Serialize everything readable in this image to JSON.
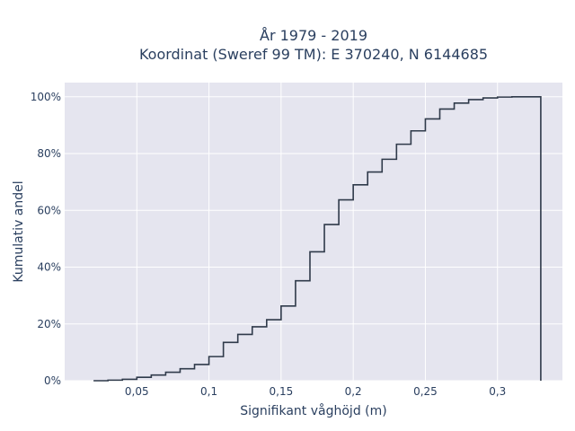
{
  "chart_data": {
    "type": "line",
    "title_line1": "År 1979 - 2019",
    "title_line2": "Koordinat (Sweref 99 TM): E 370240, N 6144685",
    "xlabel": "Signifikant våghöjd (m)",
    "ylabel": "Kumulativ andel",
    "xlim": [
      0.0,
      0.345
    ],
    "ylim": [
      0,
      1.05
    ],
    "x_ticks": [
      0.05,
      0.1,
      0.15,
      0.2,
      0.25,
      0.3
    ],
    "x_tick_labels": [
      "0,05",
      "0,1",
      "0,15",
      "0,2",
      "0,25",
      "0,3"
    ],
    "y_ticks": [
      0,
      0.2,
      0.4,
      0.6,
      0.8,
      1.0
    ],
    "y_tick_labels": [
      "0%",
      "20%",
      "40%",
      "60%",
      "80%",
      "100%"
    ],
    "grid": true,
    "line_color": "#2f3a4a",
    "plot_background": "#e5e5ef",
    "step": true,
    "x": [
      0.02,
      0.03,
      0.04,
      0.05,
      0.06,
      0.07,
      0.08,
      0.09,
      0.1,
      0.11,
      0.12,
      0.13,
      0.14,
      0.15,
      0.16,
      0.17,
      0.18,
      0.19,
      0.2,
      0.21,
      0.22,
      0.23,
      0.24,
      0.25,
      0.26,
      0.27,
      0.28,
      0.29,
      0.3,
      0.31,
      0.32,
      0.33
    ],
    "y": [
      0.0,
      0.002,
      0.005,
      0.012,
      0.02,
      0.03,
      0.042,
      0.057,
      0.085,
      0.135,
      0.163,
      0.19,
      0.215,
      0.263,
      0.352,
      0.454,
      0.55,
      0.637,
      0.69,
      0.735,
      0.78,
      0.833,
      0.88,
      0.922,
      0.957,
      0.978,
      0.99,
      0.996,
      0.999,
      1.0,
      1.0,
      0.0
    ]
  }
}
